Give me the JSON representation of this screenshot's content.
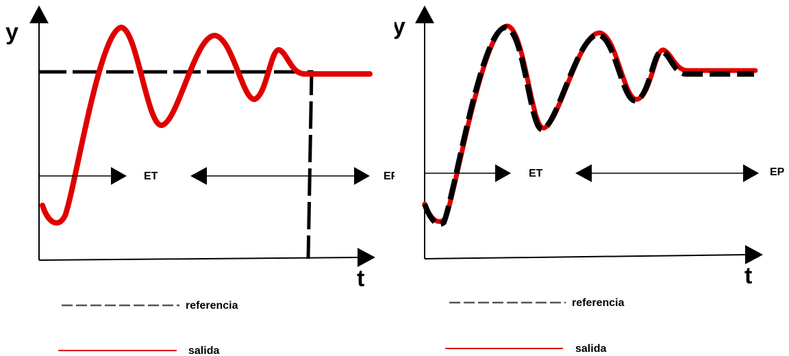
{
  "colors": {
    "output": "#e00000",
    "reference": "#000000",
    "axis": "#000000",
    "legend_reference_line": "#555555"
  },
  "panels": [
    {
      "axis_y_label": "y",
      "axis_x_label": "t",
      "transient_label": "ET",
      "steady_label": "EP",
      "legend_reference": "referencia",
      "legend_output": "salida"
    },
    {
      "axis_y_label": "y",
      "axis_x_label": "t",
      "transient_label": "ET",
      "steady_label": "EP",
      "legend_reference": "referencia",
      "legend_output": "salida"
    }
  ]
}
